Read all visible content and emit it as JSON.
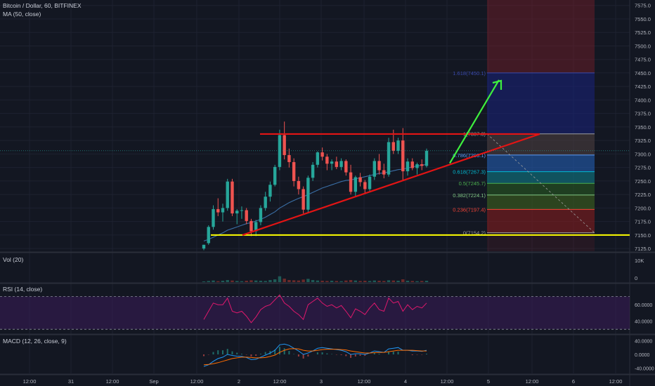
{
  "header": {
    "symbol_line": "Bitcoin / Dollar, 60, BITFINEX",
    "ma_label": "MA (50, close)",
    "vol_label": "Vol (20)",
    "rsi_label": "RSI (14, close)",
    "macd_label": "MACD (12, 26, close, 9)"
  },
  "colors": {
    "background": "#131722",
    "up_candle": "#26a69a",
    "down_candle": "#ef5350",
    "trendline": "#e31414",
    "support_line": "#ffff00",
    "arrow": "#3ef03e",
    "ma_line": "#3a6ea5",
    "rsi_line": "#e0186c",
    "macd_line": "#2196f3",
    "signal_line": "#ff6d00"
  },
  "chart_data": [
    {
      "type": "candlestick",
      "panel": "price",
      "y_ticks": [
        "7575.0",
        "7550.0",
        "7525.0",
        "7500.0",
        "7475.0",
        "7450.0",
        "7425.0",
        "7400.0",
        "7375.0",
        "7350.0",
        "7325.0",
        "7300.0",
        "7275.0",
        "7250.0",
        "7225.0",
        "7200.0",
        "7175.0",
        "7150.0",
        "7125.0"
      ],
      "ylim": [
        7120,
        7585
      ],
      "x_ticks": [
        "12:00",
        "31",
        "12:00",
        "Sep",
        "12:00",
        "2",
        "12:00",
        "3",
        "12:00",
        "4",
        "12:00",
        "5",
        "12:00",
        "6",
        "12:00"
      ],
      "candles": [
        {
          "o": 7125,
          "h": 7132,
          "l": 7122,
          "c": 7132
        },
        {
          "o": 7135,
          "h": 7168,
          "l": 7132,
          "c": 7165
        },
        {
          "o": 7165,
          "h": 7205,
          "l": 7160,
          "c": 7198
        },
        {
          "o": 7198,
          "h": 7218,
          "l": 7185,
          "c": 7192
        },
        {
          "o": 7192,
          "h": 7208,
          "l": 7175,
          "c": 7200
        },
        {
          "o": 7200,
          "h": 7254,
          "l": 7195,
          "c": 7249
        },
        {
          "o": 7249,
          "h": 7254,
          "l": 7185,
          "c": 7190
        },
        {
          "o": 7190,
          "h": 7198,
          "l": 7170,
          "c": 7195
        },
        {
          "o": 7195,
          "h": 7203,
          "l": 7180,
          "c": 7196
        },
        {
          "o": 7196,
          "h": 7200,
          "l": 7170,
          "c": 7176
        },
        {
          "o": 7176,
          "h": 7180,
          "l": 7148,
          "c": 7157
        },
        {
          "o": 7157,
          "h": 7178,
          "l": 7148,
          "c": 7174
        },
        {
          "o": 7174,
          "h": 7205,
          "l": 7168,
          "c": 7200
        },
        {
          "o": 7200,
          "h": 7230,
          "l": 7195,
          "c": 7221
        },
        {
          "o": 7221,
          "h": 7249,
          "l": 7212,
          "c": 7243
        },
        {
          "o": 7243,
          "h": 7280,
          "l": 7240,
          "c": 7276
        },
        {
          "o": 7276,
          "h": 7345,
          "l": 7270,
          "c": 7335
        },
        {
          "o": 7335,
          "h": 7360,
          "l": 7290,
          "c": 7298
        },
        {
          "o": 7298,
          "h": 7310,
          "l": 7275,
          "c": 7285
        },
        {
          "o": 7285,
          "h": 7292,
          "l": 7240,
          "c": 7250
        },
        {
          "o": 7250,
          "h": 7258,
          "l": 7225,
          "c": 7235
        },
        {
          "o": 7235,
          "h": 7240,
          "l": 7190,
          "c": 7197
        },
        {
          "o": 7197,
          "h": 7260,
          "l": 7192,
          "c": 7256
        },
        {
          "o": 7256,
          "h": 7285,
          "l": 7250,
          "c": 7280
        },
        {
          "o": 7280,
          "h": 7305,
          "l": 7275,
          "c": 7303
        },
        {
          "o": 7303,
          "h": 7312,
          "l": 7288,
          "c": 7295
        },
        {
          "o": 7295,
          "h": 7300,
          "l": 7270,
          "c": 7282
        },
        {
          "o": 7282,
          "h": 7290,
          "l": 7270,
          "c": 7286
        },
        {
          "o": 7286,
          "h": 7295,
          "l": 7272,
          "c": 7276
        },
        {
          "o": 7276,
          "h": 7292,
          "l": 7270,
          "c": 7287
        },
        {
          "o": 7287,
          "h": 7290,
          "l": 7260,
          "c": 7266
        },
        {
          "o": 7266,
          "h": 7280,
          "l": 7225,
          "c": 7230
        },
        {
          "o": 7230,
          "h": 7260,
          "l": 7222,
          "c": 7257
        },
        {
          "o": 7257,
          "h": 7265,
          "l": 7240,
          "c": 7248
        },
        {
          "o": 7248,
          "h": 7252,
          "l": 7226,
          "c": 7235
        },
        {
          "o": 7235,
          "h": 7262,
          "l": 7230,
          "c": 7258
        },
        {
          "o": 7258,
          "h": 7292,
          "l": 7252,
          "c": 7287
        },
        {
          "o": 7287,
          "h": 7300,
          "l": 7262,
          "c": 7270
        },
        {
          "o": 7270,
          "h": 7282,
          "l": 7255,
          "c": 7262
        },
        {
          "o": 7262,
          "h": 7330,
          "l": 7258,
          "c": 7322
        },
        {
          "o": 7322,
          "h": 7345,
          "l": 7300,
          "c": 7306
        },
        {
          "o": 7306,
          "h": 7330,
          "l": 7300,
          "c": 7325
        },
        {
          "o": 7325,
          "h": 7348,
          "l": 7250,
          "c": 7268
        },
        {
          "o": 7268,
          "h": 7292,
          "l": 7260,
          "c": 7286
        },
        {
          "o": 7286,
          "h": 7292,
          "l": 7270,
          "c": 7274
        },
        {
          "o": 7274,
          "h": 7284,
          "l": 7262,
          "c": 7281
        },
        {
          "o": 7281,
          "h": 7290,
          "l": 7270,
          "c": 7278
        },
        {
          "o": 7278,
          "h": 7310,
          "l": 7275,
          "c": 7306
        }
      ],
      "ma50": [
        7139,
        7142,
        7146,
        7150,
        7154,
        7159,
        7162,
        7165,
        7168,
        7171,
        7173,
        7176,
        7179,
        7183,
        7188,
        7193,
        7200,
        7205,
        7210,
        7214,
        7218,
        7221,
        7225,
        7229,
        7233,
        7237,
        7240,
        7243,
        7246,
        7249,
        7251,
        7252,
        7254,
        7256,
        7258,
        7260,
        7262,
        7264,
        7265,
        7267,
        7269,
        7271,
        7272,
        7274,
        7276,
        7278,
        7279,
        7281
      ]
    },
    {
      "type": "fibonacci",
      "levels": [
        {
          "ratio": "1.618",
          "label": "1.618(7450.1)",
          "value": 7450.1,
          "color": "#3949ab"
        },
        {
          "ratio": "1",
          "label": "1(7337.3)",
          "value": 7337.3,
          "color": "#9e9e9e"
        },
        {
          "ratio": "0.786",
          "label": "0.786(7298.1)",
          "value": 7298.1,
          "color": "#5b9cf6"
        },
        {
          "ratio": "0.618",
          "label": "0.618(7267.3)",
          "value": 7267.3,
          "color": "#00bcd4"
        },
        {
          "ratio": "0.5",
          "label": "0.5(7245.7)",
          "value": 7245.7,
          "color": "#4caf50"
        },
        {
          "ratio": "0.382",
          "label": "0.382(7224.1)",
          "value": 7224.1,
          "color": "#81c784"
        },
        {
          "ratio": "0.236",
          "label": "0.236(7197.4)",
          "value": 7197.4,
          "color": "#f44336"
        },
        {
          "ratio": "0",
          "label": "0(7154.2)",
          "value": 7154.2,
          "color": "#9e9e9e"
        }
      ]
    },
    {
      "type": "bar",
      "panel": "volume",
      "y_ticks": [
        "10K",
        "0"
      ],
      "ylim": [
        0,
        12000
      ],
      "values": [
        300,
        500,
        700,
        400,
        600,
        900,
        700,
        500,
        400,
        600,
        800,
        700,
        600,
        500,
        900,
        1200,
        2500,
        1500,
        900,
        800,
        700,
        1100,
        1400,
        900,
        700,
        600,
        500,
        600,
        500,
        400,
        700,
        900,
        700,
        500,
        600,
        500,
        700,
        600,
        500,
        800,
        700,
        600,
        1200,
        600,
        500,
        400,
        500,
        600
      ]
    },
    {
      "type": "line",
      "panel": "rsi",
      "y_ticks": [
        "60.0000",
        "40.0000"
      ],
      "ylim": [
        25,
        85
      ],
      "bands": [
        70,
        30
      ],
      "values": [
        42,
        52,
        62,
        60,
        60,
        68,
        52,
        50,
        52,
        46,
        38,
        45,
        54,
        58,
        60,
        66,
        72,
        62,
        58,
        52,
        48,
        42,
        60,
        64,
        68,
        62,
        58,
        60,
        56,
        59,
        52,
        44,
        55,
        52,
        48,
        56,
        62,
        54,
        52,
        68,
        62,
        64,
        52,
        60,
        54,
        58,
        56,
        62
      ]
    },
    {
      "type": "line",
      "panel": "macd",
      "y_ticks": [
        "40.0000",
        "0.0000",
        "-40.0000"
      ],
      "ylim": [
        -55,
        55
      ],
      "macd": [
        -35,
        -30,
        -20,
        -12,
        -8,
        0,
        -3,
        -5,
        -6,
        -9,
        -15,
        -14,
        -8,
        -2,
        4,
        12,
        28,
        30,
        26,
        18,
        10,
        0,
        4,
        10,
        18,
        20,
        18,
        16,
        14,
        12,
        8,
        0,
        2,
        2,
        0,
        4,
        10,
        8,
        6,
        16,
        18,
        20,
        12,
        12,
        10,
        10,
        9,
        12
      ],
      "signal": [
        -30,
        -29,
        -27,
        -24,
        -20,
        -16,
        -12,
        -10,
        -8,
        -8,
        -9,
        -10,
        -10,
        -9,
        -6,
        -2,
        6,
        12,
        16,
        17,
        16,
        12,
        10,
        10,
        12,
        14,
        15,
        15,
        15,
        14,
        13,
        10,
        8,
        6,
        4,
        4,
        5,
        6,
        6,
        8,
        10,
        12,
        12,
        12,
        12,
        11,
        10,
        10
      ]
    }
  ]
}
